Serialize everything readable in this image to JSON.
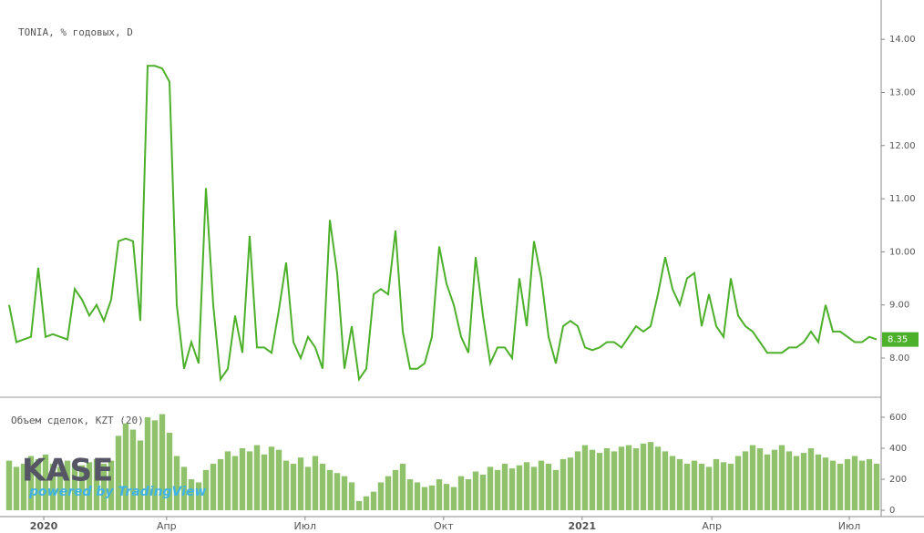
{
  "chart_data": [
    {
      "type": "line",
      "title": "TONIA, % годовых, D",
      "color": "#4cb02a",
      "values": [
        9.0,
        8.3,
        8.35,
        8.4,
        9.7,
        8.4,
        8.45,
        8.4,
        8.35,
        9.3,
        9.1,
        8.8,
        9.0,
        8.7,
        9.1,
        10.2,
        10.25,
        10.2,
        8.7,
        13.5,
        13.5,
        13.45,
        13.2,
        9.0,
        7.8,
        8.3,
        7.9,
        11.2,
        9.0,
        7.6,
        7.8,
        8.8,
        8.1,
        10.3,
        8.2,
        8.2,
        8.1,
        8.9,
        9.8,
        8.3,
        8.0,
        8.4,
        8.2,
        7.8,
        10.6,
        9.6,
        7.8,
        8.6,
        7.6,
        7.8,
        9.2,
        9.3,
        9.2,
        10.4,
        8.5,
        7.8,
        7.8,
        7.9,
        8.4,
        10.1,
        9.4,
        9.0,
        8.4,
        8.1,
        9.9,
        8.8,
        7.9,
        8.2,
        8.2,
        8.0,
        9.5,
        8.6,
        10.2,
        9.5,
        8.4,
        7.9,
        8.6,
        8.7,
        8.6,
        8.2,
        8.15,
        8.2,
        8.3,
        8.3,
        8.2,
        8.4,
        8.6,
        8.5,
        8.6,
        9.2,
        9.9,
        9.3,
        9.0,
        9.5,
        9.6,
        8.6,
        9.2,
        8.6,
        8.4,
        9.5,
        8.8,
        8.6,
        8.5,
        8.3,
        8.1,
        8.1,
        8.1,
        8.2,
        8.2,
        8.3,
        8.5,
        8.3,
        9.0,
        8.5,
        8.5,
        8.4,
        8.3,
        8.3,
        8.4,
        8.35
      ],
      "xlim": [
        0,
        119
      ],
      "xticks": [
        {
          "value": 4.75,
          "label": "2020"
        },
        {
          "value": 21.6,
          "label": "Апр"
        },
        {
          "value": 40.6,
          "label": "Июл"
        },
        {
          "value": 59.6,
          "label": "Окт"
        },
        {
          "value": 78.6,
          "label": "2021"
        },
        {
          "value": 96.4,
          "label": "Апр"
        },
        {
          "value": 115.25,
          "label": "Июл"
        }
      ],
      "ylim": [
        7.28,
        14.74
      ],
      "yticks": [
        {
          "value": 8,
          "label": "8.00"
        },
        {
          "value": 9,
          "label": "9.00"
        },
        {
          "value": 10,
          "label": "10.00"
        },
        {
          "value": 11,
          "label": "11.00"
        },
        {
          "value": 12,
          "label": "12.00"
        },
        {
          "value": 13,
          "label": "13.00"
        },
        {
          "value": 14,
          "label": "14.00"
        }
      ]
    },
    {
      "type": "bar",
      "title": "Объем сделок, KZT (20)",
      "color": "#8fc26b",
      "values": [
        320,
        280,
        300,
        350,
        330,
        360,
        300,
        280,
        320,
        300,
        290,
        310,
        330,
        300,
        320,
        480,
        560,
        520,
        450,
        600,
        580,
        620,
        500,
        350,
        280,
        200,
        180,
        260,
        300,
        330,
        380,
        350,
        400,
        380,
        420,
        360,
        410,
        390,
        320,
        300,
        340,
        280,
        350,
        300,
        260,
        240,
        220,
        180,
        60,
        90,
        120,
        180,
        220,
        260,
        300,
        200,
        180,
        150,
        160,
        200,
        170,
        150,
        220,
        200,
        250,
        230,
        280,
        260,
        300,
        270,
        290,
        310,
        280,
        320,
        300,
        260,
        330,
        340,
        380,
        420,
        390,
        370,
        400,
        380,
        410,
        420,
        400,
        430,
        440,
        410,
        380,
        350,
        330,
        300,
        320,
        300,
        280,
        330,
        310,
        300,
        350,
        380,
        420,
        400,
        360,
        390,
        420,
        380,
        350,
        370,
        400,
        360,
        340,
        320,
        300,
        330,
        350,
        320,
        330,
        300
      ],
      "xlim": [
        0,
        119
      ],
      "ylim": [
        -29,
        723
      ],
      "yticks": [
        0,
        200,
        400,
        600
      ]
    }
  ],
  "logo": {
    "name": "KASE",
    "powered": "powered by TradingView"
  }
}
